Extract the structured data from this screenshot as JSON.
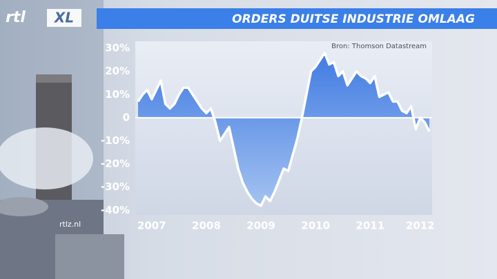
{
  "brand": "rtl",
  "brand_suffix": "XL",
  "website": "rtlz.nl",
  "chart_data": {
    "type": "area-line",
    "title": "ORDERS DUITSE INDUSTRIE OMLAAG",
    "source": "Bron: Thomson Datastream",
    "categories": [
      null,
      null,
      null,
      "2007",
      null,
      null,
      null,
      null,
      null,
      null,
      null,
      null,
      null,
      null,
      null,
      "2008",
      null,
      null,
      null,
      null,
      null,
      null,
      null,
      null,
      null,
      null,
      null,
      "2009",
      null,
      null,
      null,
      null,
      null,
      null,
      null,
      null,
      null,
      null,
      null,
      "2010",
      null,
      null,
      null,
      null,
      null,
      null,
      null,
      null,
      null,
      null,
      null,
      "2011",
      null,
      null,
      null,
      null,
      null,
      null,
      null,
      null,
      null,
      null,
      "2012",
      null,
      null
    ],
    "values": [
      7,
      10,
      12,
      8,
      12,
      16,
      6,
      4,
      6,
      10,
      13,
      13,
      10,
      7,
      4,
      2,
      4,
      -2,
      -10,
      -7,
      -4,
      -13,
      -22,
      -28,
      -32,
      -35,
      -37,
      -38,
      -34,
      -36,
      -32,
      -27,
      -22,
      -23,
      -16,
      -9,
      0,
      10,
      20,
      22,
      25,
      28,
      23,
      24,
      18,
      20,
      14,
      17,
      20,
      18,
      17,
      15,
      18,
      9,
      10,
      11,
      7,
      7,
      3,
      2,
      5,
      -5,
      0,
      -2,
      -6
    ],
    "color": "#ffffff",
    "fill_color": "#3f7fe6",
    "ylim": [
      -42,
      33
    ],
    "yticks": [
      {
        "value": 30,
        "label": "30%"
      },
      {
        "value": 20,
        "label": "20%"
      },
      {
        "value": 10,
        "label": "10%"
      },
      0,
      {
        "value": -10,
        "label": "-10%"
      },
      {
        "value": -20,
        "label": "-20%"
      },
      {
        "value": -30,
        "label": "-30%"
      },
      {
        "value": -40,
        "label": "-40%"
      }
    ],
    "zero_line": true
  }
}
